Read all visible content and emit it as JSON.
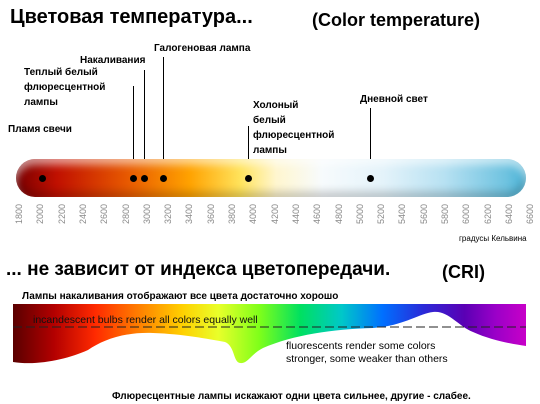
{
  "header": {
    "title_ru": "Цветовая температура...",
    "title_en": "(Color temperature)"
  },
  "light_sources": [
    {
      "label": "Пламя свечи"
    },
    {
      "label": "Теплый белый\nфлюресцентной\nлампы"
    },
    {
      "label": "Накаливания"
    },
    {
      "label": "Галогеновая лампа"
    },
    {
      "label": "Холоный\nбелый\nфлюресцентной\nлампы"
    },
    {
      "label": "Дневной свет"
    }
  ],
  "scale": {
    "ticks": [
      "1800",
      "2000",
      "2200",
      "2400",
      "2600",
      "2800",
      "3000",
      "3200",
      "3400",
      "3600",
      "3800",
      "4000",
      "4200",
      "4400",
      "4600",
      "4800",
      "5000",
      "5200",
      "5400",
      "5600",
      "5800",
      "6000",
      "6200",
      "6400",
      "6600"
    ],
    "units": "градусы Кельвина"
  },
  "cri": {
    "title_ru": "... не зависит от индекса цветопередачи.",
    "title_en": "(CRI)",
    "top_caption": "Лампы накаливания отображают все цвета достаточно хорошо",
    "incandescent_text": "incandescent bulbs render all colors equally well",
    "fluorescent_text_line1": "fluorescents render some colors",
    "fluorescent_text_line2": "stronger, some weaker than others",
    "bottom_caption": "Флюресцентные лампы искажают одни цвета сильнее, другие - слабее."
  }
}
